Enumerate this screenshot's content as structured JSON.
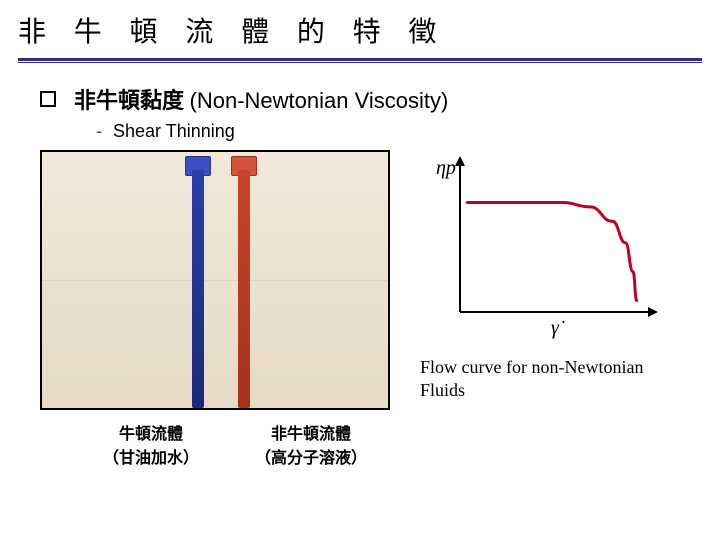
{
  "title": "非 牛 頓 流 體 的 特 徵",
  "bullet": {
    "cjk": "非牛頓黏度",
    "latin": "(Non-Newtonian Viscosity)"
  },
  "sub_bullet": "Shear Thinning",
  "photo_labels": {
    "left_line1": "牛頓流體",
    "left_line2": "（甘油加水）",
    "right_line1": "非牛頓流體",
    "right_line2": "（高分子溶液）"
  },
  "chart": {
    "type": "line",
    "y_label_symbol": "ηp",
    "x_label_symbol": "γ̇",
    "axis_color": "#000000",
    "curve_color": "#c00020",
    "curve_width": 3,
    "arrow_size": 10,
    "xlim": [
      0,
      10
    ],
    "ylim": [
      0,
      10
    ],
    "plateau_y": 7.6,
    "pts": [
      [
        0.4,
        7.6
      ],
      [
        5.5,
        7.6
      ],
      [
        7.0,
        7.3
      ],
      [
        8.2,
        6.3
      ],
      [
        8.9,
        4.8
      ],
      [
        9.3,
        2.8
      ],
      [
        9.5,
        0.8
      ]
    ],
    "background_color": "#ffffff"
  },
  "chart_caption": "Flow curve for non-Newtonian Fluids",
  "colors": {
    "title_rule": "#2c2c8a",
    "photo_border": "#000000",
    "photo_bg": "#efe6d8",
    "tube_blue": "#2a3ea8",
    "tube_red": "#c8432a"
  }
}
